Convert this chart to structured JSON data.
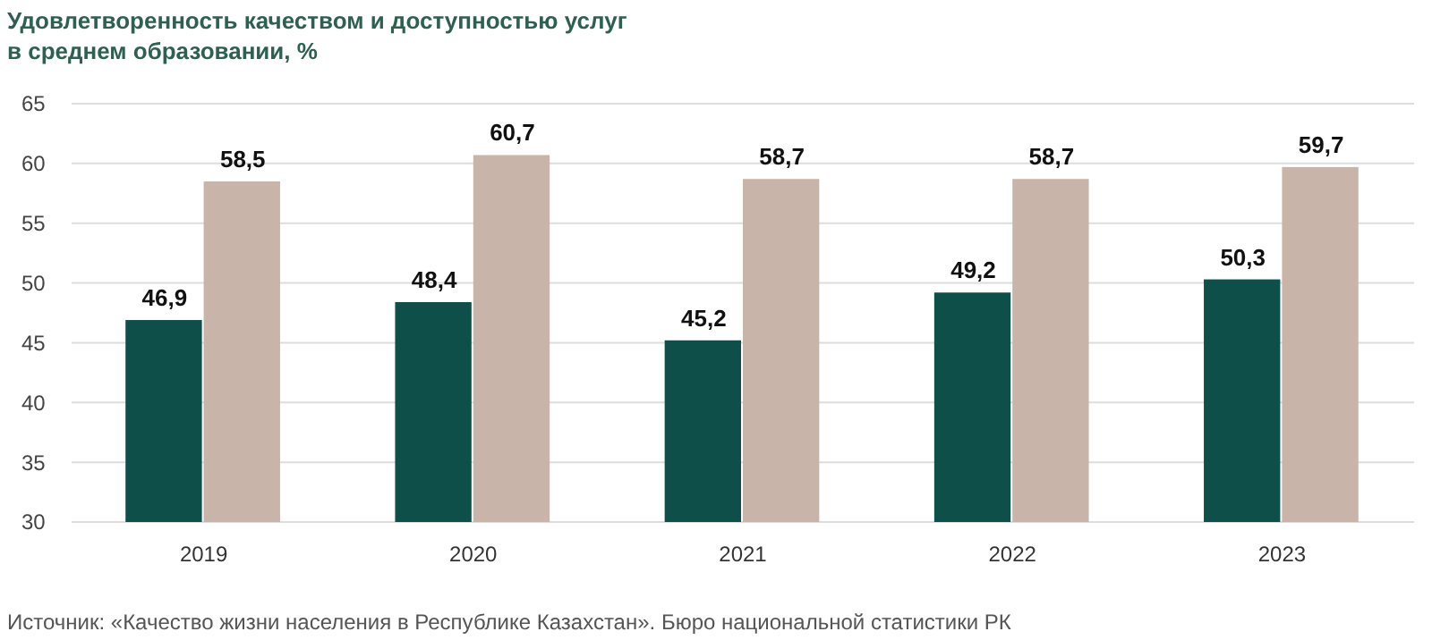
{
  "chart_data": {
    "type": "bar",
    "title": "Удовлетворенность качеством и доступностью услуг\nв среднем образовании, %",
    "categories": [
      "2019",
      "2020",
      "2021",
      "2022",
      "2023"
    ],
    "series": [
      {
        "color": "#0f4f4a",
        "values": [
          46.9,
          48.4,
          45.2,
          49.2,
          50.3
        ],
        "value_labels": [
          "46,9",
          "48,4",
          "45,2",
          "49,2",
          "50,3"
        ]
      },
      {
        "color": "#c8b4a8",
        "values": [
          58.5,
          60.7,
          58.7,
          58.7,
          59.7
        ],
        "value_labels": [
          "58,5",
          "60,7",
          "58,7",
          "58,7",
          "59,7"
        ]
      }
    ],
    "ylim": [
      30,
      65
    ],
    "yticks": [
      30,
      35,
      40,
      45,
      50,
      55,
      60,
      65
    ],
    "grid": "y",
    "annotations": [
      "Источник: «Качество жизни населения в Республике Казахстан». Бюро национальной статистики РК"
    ]
  }
}
